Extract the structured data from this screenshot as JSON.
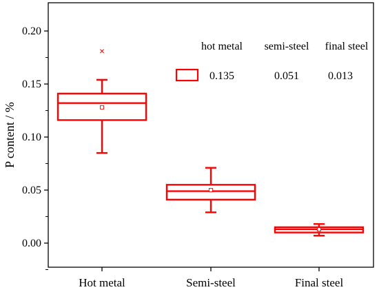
{
  "chart_data": {
    "type": "box",
    "title": "",
    "xlabel": "",
    "ylabel": "P content / %",
    "ylim": [
      -0.02,
      0.22
    ],
    "yticks": [
      0.0,
      0.05,
      0.1,
      0.15,
      0.2
    ],
    "ytick_labels": [
      "0.00",
      "0.05",
      "0.10",
      "0.15",
      "0.20"
    ],
    "categories": [
      "Hot metal",
      "Semi-steel",
      "Final steel"
    ],
    "boxes": [
      {
        "category": "Hot metal",
        "whisker_low": 0.085,
        "q1": 0.116,
        "median": 0.132,
        "q3": 0.141,
        "whisker_high": 0.154,
        "mean": 0.128,
        "outliers": [
          0.181
        ]
      },
      {
        "category": "Semi-steel",
        "whisker_low": 0.029,
        "q1": 0.041,
        "median": 0.049,
        "q3": 0.055,
        "whisker_high": 0.071,
        "mean": 0.05,
        "outliers": []
      },
      {
        "category": "Final steel",
        "whisker_low": 0.007,
        "q1": 0.01,
        "median": 0.013,
        "q3": 0.015,
        "whisker_high": 0.018,
        "mean": 0.013,
        "outliers": []
      }
    ],
    "legend_table": {
      "headers": [
        "hot metal",
        "semi-steel",
        "final steel"
      ],
      "values": [
        "0.135",
        "0.051",
        "0.013"
      ]
    },
    "color": "#ff0000",
    "grid": false
  }
}
